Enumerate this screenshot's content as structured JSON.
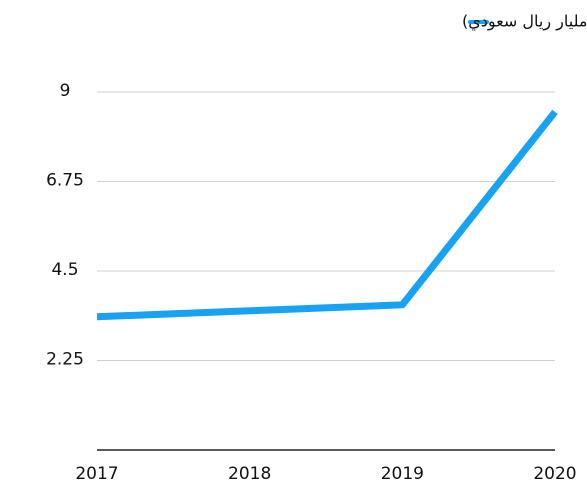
{
  "chart_data": {
    "type": "line",
    "categories": [
      "2017",
      "2018",
      "2019",
      "2020"
    ],
    "series": [
      {
        "name": "حجم التداول اليومي (مليار ريال سعودي)",
        "color": "#17a2f3",
        "values": [
          3.35,
          3.5,
          3.65,
          8.5
        ]
      }
    ],
    "ylim": [
      0,
      9
    ],
    "yticks": [
      2.25,
      4.5,
      6.75,
      9
    ],
    "grid": true,
    "legend": "top"
  }
}
